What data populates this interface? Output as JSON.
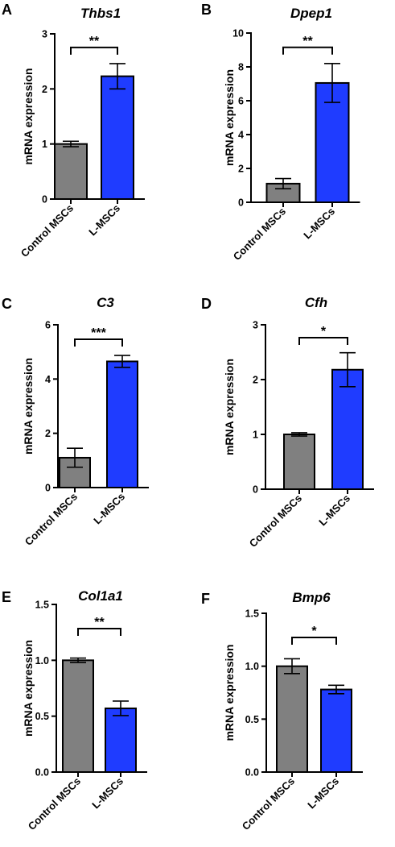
{
  "figure": {
    "panels": [
      {
        "letter": "A",
        "title": "Thbs1"
      },
      {
        "letter": "B",
        "title": "Dpep1"
      },
      {
        "letter": "C",
        "title": "C3"
      },
      {
        "letter": "D",
        "title": "Cfh"
      },
      {
        "letter": "E",
        "title": "Col1a1"
      },
      {
        "letter": "F",
        "title": "Bmp6"
      }
    ]
  },
  "chart_data": [
    {
      "type": "bar",
      "title": "Thbs1",
      "ylabel": "mRNA expression",
      "xlabel": "",
      "categories": [
        "Control MSCs",
        "L-MSCs"
      ],
      "values": [
        1.0,
        2.23
      ],
      "errors": [
        0.05,
        0.23
      ],
      "ylim": [
        0,
        3
      ],
      "yticks": [
        "0",
        "1",
        "2",
        "3"
      ],
      "ytick_values": [
        0,
        1,
        2,
        3
      ],
      "colors": [
        "#808080",
        "#1f3cff"
      ],
      "significance": "**"
    },
    {
      "type": "bar",
      "title": "Dpep1",
      "ylabel": "mRNA expression",
      "xlabel": "",
      "categories": [
        "Control MSCs",
        "L-MSCs"
      ],
      "values": [
        1.1,
        7.05
      ],
      "errors": [
        0.3,
        1.15
      ],
      "ylim": [
        0,
        10
      ],
      "yticks": [
        "0",
        "2",
        "4",
        "6",
        "8",
        "10"
      ],
      "ytick_values": [
        0,
        2,
        4,
        6,
        8,
        10
      ],
      "colors": [
        "#808080",
        "#1f3cff"
      ],
      "significance": "**"
    },
    {
      "type": "bar",
      "title": "C3",
      "ylabel": "mRNA expression",
      "xlabel": "",
      "categories": [
        "Control MSCs",
        "L-MSCs"
      ],
      "values": [
        1.1,
        4.65
      ],
      "errors": [
        0.35,
        0.22
      ],
      "ylim": [
        0,
        6
      ],
      "yticks": [
        "0",
        "2",
        "4",
        "6"
      ],
      "ytick_values": [
        0,
        2,
        4,
        6
      ],
      "colors": [
        "#808080",
        "#1f3cff"
      ],
      "significance": "***"
    },
    {
      "type": "bar",
      "title": "Cfh",
      "ylabel": "mRNA expression",
      "xlabel": "",
      "categories": [
        "Control MSCs",
        "L-MSCs"
      ],
      "values": [
        1.0,
        2.18
      ],
      "errors": [
        0.03,
        0.31
      ],
      "ylim": [
        0,
        3
      ],
      "yticks": [
        "0",
        "1",
        "2",
        "3"
      ],
      "ytick_values": [
        0,
        1,
        2,
        3
      ],
      "colors": [
        "#808080",
        "#1f3cff"
      ],
      "significance": "*"
    },
    {
      "type": "bar",
      "title": "Col1a1",
      "ylabel": "mRNA expression",
      "xlabel": "",
      "categories": [
        "Control MSCs",
        "L-MSCs"
      ],
      "values": [
        1.0,
        0.57
      ],
      "errors": [
        0.02,
        0.065
      ],
      "ylim": [
        0,
        1.5
      ],
      "yticks": [
        "0.0",
        "0.5",
        "1.0",
        "1.5"
      ],
      "ytick_values": [
        0,
        0.5,
        1.0,
        1.5
      ],
      "colors": [
        "#808080",
        "#1f3cff"
      ],
      "significance": "**"
    },
    {
      "type": "bar",
      "title": "Bmp6",
      "ylabel": "mRNA expression",
      "xlabel": "",
      "categories": [
        "Control MSCs",
        "L-MSCs"
      ],
      "values": [
        1.0,
        0.78
      ],
      "errors": [
        0.07,
        0.04
      ],
      "ylim": [
        0,
        1.5
      ],
      "yticks": [
        "0.0",
        "0.5",
        "1.0",
        "1.5"
      ],
      "ytick_values": [
        0,
        0.5,
        1.0,
        1.5
      ],
      "colors": [
        "#808080",
        "#1f3cff"
      ],
      "significance": "*"
    }
  ]
}
